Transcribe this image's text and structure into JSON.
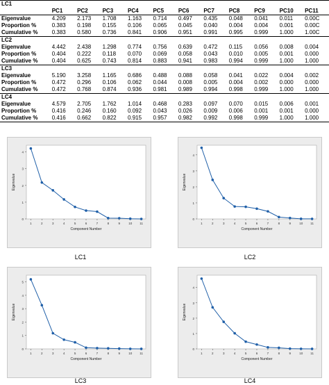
{
  "table": {
    "columns": [
      "PC1",
      "PC2",
      "PC3",
      "PC4",
      "PC5",
      "PC6",
      "PC7",
      "PC8",
      "PC9",
      "PC10",
      "PC11"
    ],
    "row_labels": [
      "Eigenvalue",
      "Proportion %",
      "Cumulative %"
    ],
    "sections": [
      {
        "name": "LC1",
        "rows": [
          [
            "4.209",
            "2.173",
            "1.708",
            "1.163",
            "0.714",
            "0.497",
            "0.435",
            "0.048",
            "0.041",
            "0.011",
            "0.00C"
          ],
          [
            "0.383",
            "0.198",
            "0.155",
            "0.106",
            "0.065",
            "0.045",
            "0.040",
            "0.004",
            "0.004",
            "0.001",
            "0.00C"
          ],
          [
            "0.383",
            "0.580",
            "0.736",
            "0.841",
            "0.906",
            "0.951",
            "0.991",
            "0.995",
            "0.999",
            "1.000",
            "1.00C"
          ]
        ]
      },
      {
        "name": "LC2",
        "rows": [
          [
            "4.442",
            "2.438",
            "1.298",
            "0.774",
            "0.756",
            "0.639",
            "0.472",
            "0.115",
            "0.056",
            "0.008",
            "0.004"
          ],
          [
            "0.404",
            "0.222",
            "0.118",
            "0.070",
            "0.069",
            "0.058",
            "0.043",
            "0.010",
            "0.005",
            "0.001",
            "0.000"
          ],
          [
            "0.404",
            "0.625",
            "0.743",
            "0.814",
            "0.883",
            "0.941",
            "0.983",
            "0.994",
            "0.999",
            "1.000",
            "1.000"
          ]
        ]
      },
      {
        "name": "LC3",
        "rows": [
          [
            "5.190",
            "3.258",
            "1.165",
            "0.686",
            "0.488",
            "0.088",
            "0.058",
            "0.041",
            "0.022",
            "0.004",
            "0.002"
          ],
          [
            "0.472",
            "0.296",
            "0.106",
            "0.062",
            "0.044",
            "0.008",
            "0.005",
            "0.004",
            "0.002",
            "0.000",
            "0.000"
          ],
          [
            "0.472",
            "0.768",
            "0.874",
            "0.936",
            "0.981",
            "0.989",
            "0.994",
            "0.998",
            "0.999",
            "1.000",
            "1.000"
          ]
        ]
      },
      {
        "name": "LC4",
        "rows": [
          [
            "4.579",
            "2.705",
            "1.762",
            "1.014",
            "0.468",
            "0.283",
            "0.097",
            "0.070",
            "0.015",
            "0.006",
            "0.001"
          ],
          [
            "0.416",
            "0.246",
            "0.160",
            "0.092",
            "0.043",
            "0.026",
            "0.009",
            "0.006",
            "0.001",
            "0.001",
            "0.000"
          ],
          [
            "0.416",
            "0.662",
            "0.822",
            "0.915",
            "0.957",
            "0.982",
            "0.992",
            "0.998",
            "0.999",
            "1.000",
            "1.000"
          ]
        ]
      }
    ]
  },
  "chart_data": [
    {
      "type": "line",
      "caption": "LC1",
      "xlabel": "Component Number",
      "ylabel": "Eigenvalue",
      "x": [
        1,
        2,
        3,
        4,
        5,
        6,
        7,
        8,
        9,
        10,
        11
      ],
      "y": [
        4.209,
        2.173,
        1.708,
        1.163,
        0.714,
        0.497,
        0.435,
        0.048,
        0.041,
        0.011,
        0.0
      ],
      "ylim": [
        0,
        4.4
      ],
      "yticks": [
        0,
        1,
        2,
        3,
        4
      ],
      "marker_color": "#1f5fa8"
    },
    {
      "type": "line",
      "caption": "LC2",
      "xlabel": "Component Number",
      "ylabel": "Eigenvalue",
      "x": [
        1,
        2,
        3,
        4,
        5,
        6,
        7,
        8,
        9,
        10,
        11
      ],
      "y": [
        4.442,
        2.438,
        1.298,
        0.774,
        0.756,
        0.639,
        0.472,
        0.115,
        0.056,
        0.008,
        0.004
      ],
      "ylim": [
        0,
        4.6
      ],
      "yticks": [
        0,
        1,
        2,
        3,
        4
      ],
      "marker_color": "#1f5fa8"
    },
    {
      "type": "line",
      "caption": "LC3",
      "xlabel": "Component Number",
      "ylabel": "Eigenvalue",
      "x": [
        1,
        2,
        3,
        4,
        5,
        6,
        7,
        8,
        9,
        10,
        11
      ],
      "y": [
        5.19,
        3.258,
        1.165,
        0.686,
        0.488,
        0.088,
        0.058,
        0.041,
        0.022,
        0.004,
        0.002
      ],
      "ylim": [
        0,
        5.5
      ],
      "yticks": [
        0,
        1,
        2,
        3,
        4,
        5
      ],
      "marker_color": "#1f5fa8"
    },
    {
      "type": "line",
      "caption": "LC4",
      "xlabel": "Component Number",
      "ylabel": "Eigenvalue",
      "x": [
        1,
        2,
        3,
        4,
        5,
        6,
        7,
        8,
        9,
        10,
        11
      ],
      "y": [
        4.579,
        2.705,
        1.762,
        1.014,
        0.468,
        0.283,
        0.097,
        0.07,
        0.015,
        0.006,
        0.001
      ],
      "ylim": [
        0,
        4.8
      ],
      "yticks": [
        0,
        1,
        2,
        3,
        4
      ],
      "marker_color": "#1f5fa8"
    }
  ]
}
